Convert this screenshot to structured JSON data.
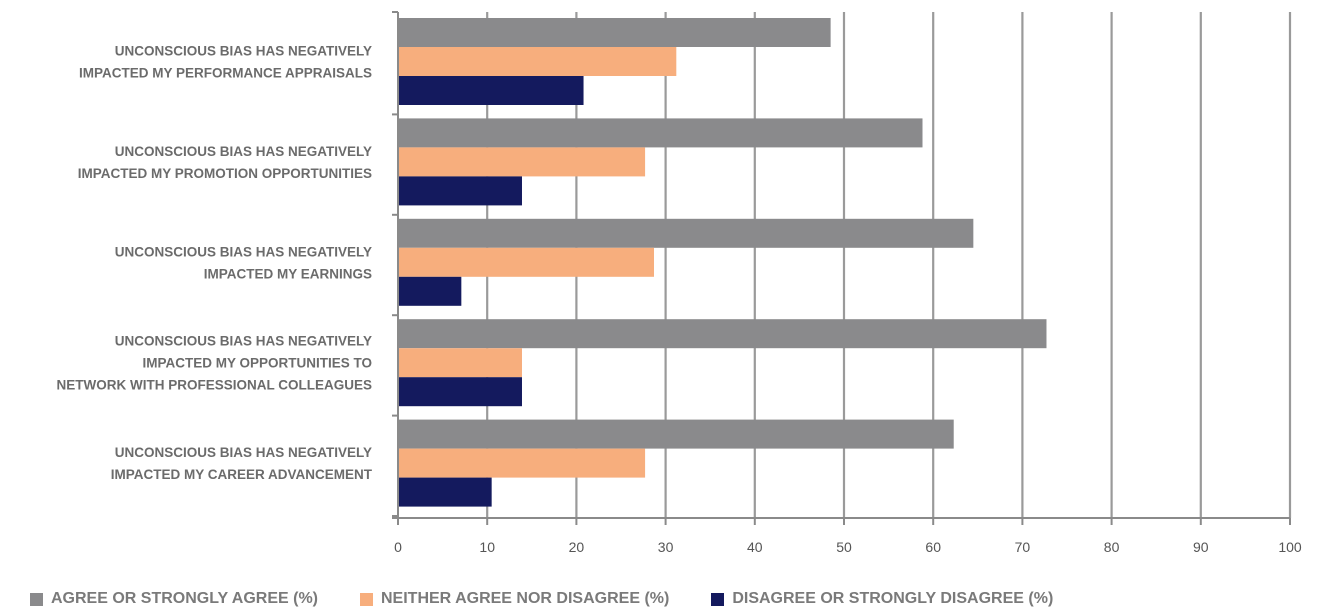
{
  "chart_data": {
    "type": "bar",
    "orientation": "horizontal",
    "categories": [
      [
        "UNCONSCIOUS BIAS HAS NEGATIVELY",
        "IMPACTED MY PERFORMANCE APPRAISALS"
      ],
      [
        "UNCONSCIOUS BIAS HAS NEGATIVELY",
        "IMPACTED MY PROMOTION OPPORTUNITIES"
      ],
      [
        "UNCONSCIOUS BIAS HAS NEGATIVELY",
        "IMPACTED MY EARNINGS"
      ],
      [
        "UNCONSCIOUS BIAS HAS NEGATIVELY",
        "IMPACTED MY OPPORTUNITIES TO",
        "NETWORK WITH PROFESSIONAL COLLEAGUES"
      ],
      [
        "UNCONSCIOUS BIAS HAS NEGATIVELY",
        "IMPACTED MY CAREER ADVANCEMENT"
      ]
    ],
    "series": [
      {
        "name": "AGREE OR STRONGLY AGREE (%)",
        "color": "#8a8a8c",
        "values": [
          48.5,
          58.8,
          64.5,
          72.7,
          62.3
        ]
      },
      {
        "name": "NEITHER AGREE NOR DISAGREE (%)",
        "color": "#f7ae7d",
        "values": [
          31.2,
          27.7,
          28.7,
          13.9,
          27.7
        ]
      },
      {
        "name": "DISAGREE OR STRONGLY DISAGREE (%)",
        "color": "#141a5e",
        "values": [
          20.8,
          13.9,
          7.1,
          13.9,
          10.5
        ]
      }
    ],
    "xlim": [
      0,
      100
    ],
    "xticks": [
      0,
      10,
      20,
      30,
      40,
      50,
      60,
      70,
      80,
      90,
      100
    ],
    "grid": true,
    "legend_position": "bottom",
    "title": "",
    "xlabel": "",
    "ylabel": ""
  }
}
